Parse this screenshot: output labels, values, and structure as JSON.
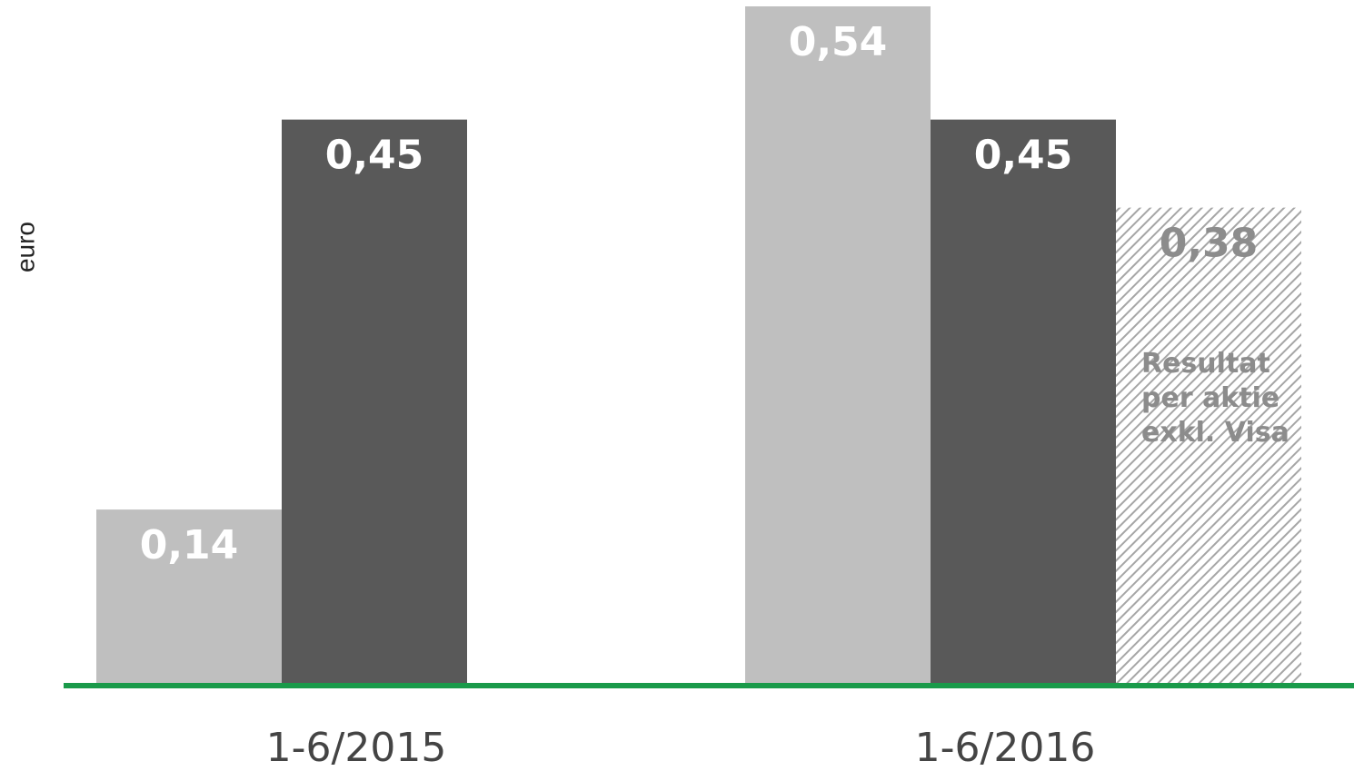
{
  "chart_data": {
    "type": "bar",
    "y_label": "euro",
    "categories": [
      "1-6/2015",
      "1-6/2016"
    ],
    "series": [
      {
        "color": "#bfbfbf",
        "values": [
          0.14,
          0.54
        ],
        "value_labels": [
          "0,14",
          "0,54"
        ],
        "label_color": "#ffffff"
      },
      {
        "color": "#595959",
        "values": [
          0.45,
          0.45
        ],
        "value_labels": [
          "0,45",
          "0,45"
        ],
        "label_color": "#ffffff"
      },
      {
        "color": "#a6a6a6",
        "hatch": true,
        "values": [
          null,
          0.38
        ],
        "value_labels": [
          null,
          "0,38"
        ],
        "label_color": "#8c8c8c"
      }
    ],
    "annotation": "Resultat per aktie exkl. Visa",
    "baseline_color": "#1a9a4a",
    "ylim": [
      0,
      0.54
    ]
  }
}
